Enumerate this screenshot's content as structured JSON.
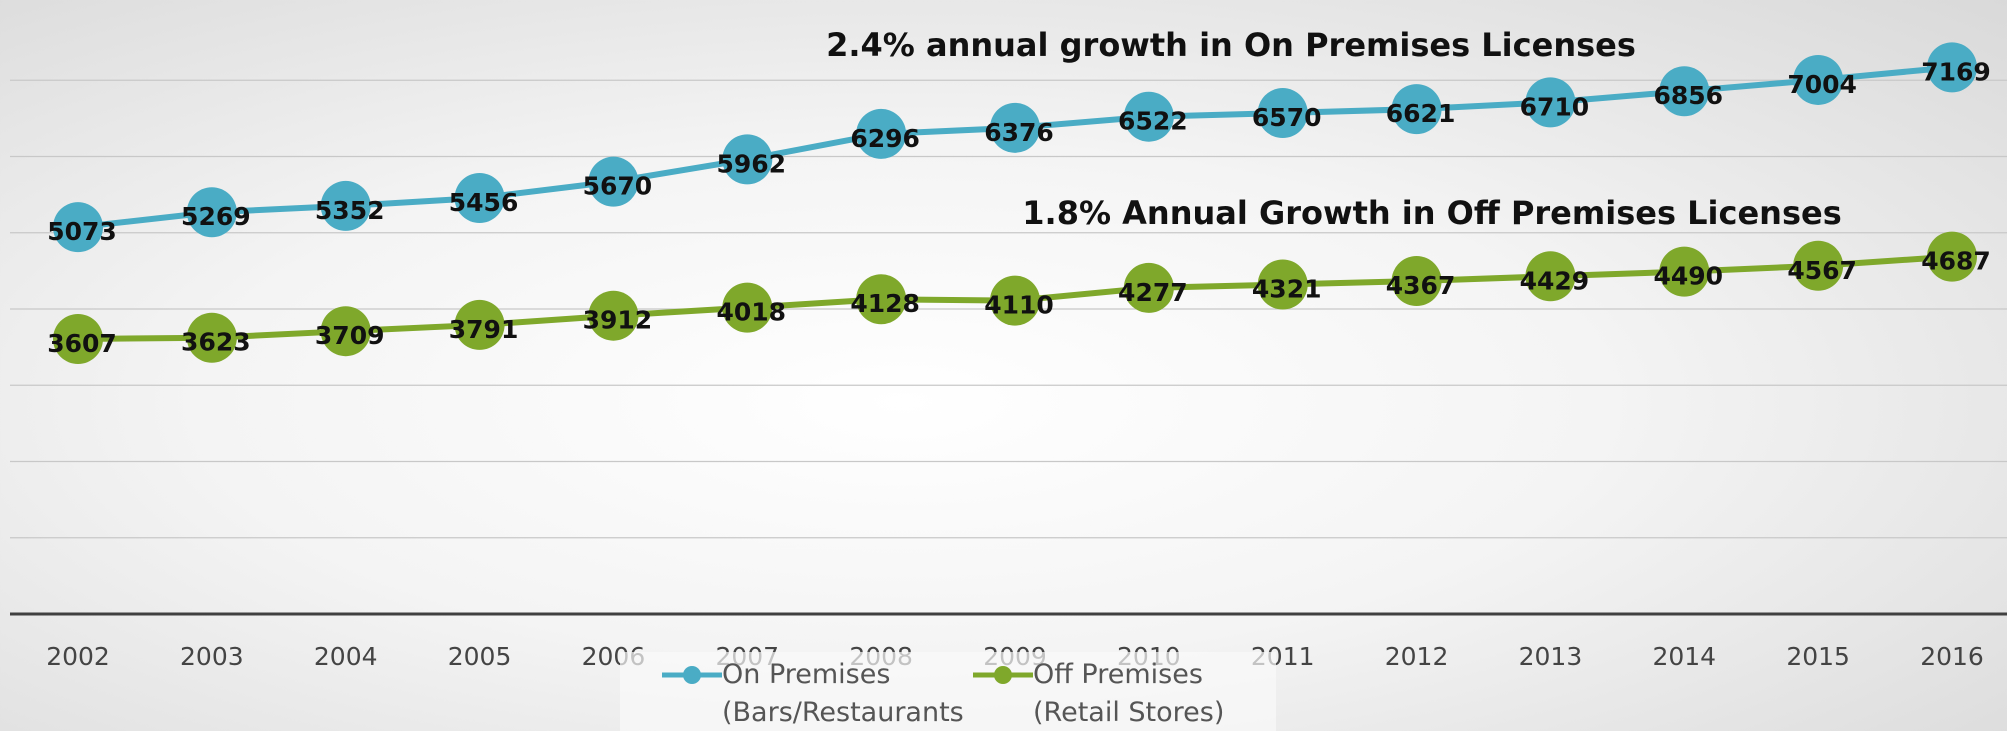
{
  "chart_data": {
    "type": "line",
    "annotations": [
      "2.4% annual growth in On Premises Licenses",
      "1.8% Annual Growth in Off Premises Licenses"
    ],
    "categories": [
      "2002",
      "2003",
      "2004",
      "2005",
      "2006",
      "2007",
      "2008",
      "2009",
      "2010",
      "2011",
      "2012",
      "2013",
      "2014",
      "2015",
      "2016"
    ],
    "series": [
      {
        "name": "On Premises (Bars/Restaurants",
        "color": "#4aacc5",
        "values": [
          5073,
          5269,
          5352,
          5456,
          5670,
          5962,
          6296,
          6376,
          6522,
          6570,
          6621,
          6710,
          6856,
          7004,
          7169
        ]
      },
      {
        "name": "Off Premises (Retail Stores)",
        "color": "#7fa82b",
        "values": [
          3607,
          3623,
          3709,
          3791,
          3912,
          4018,
          4128,
          4110,
          4277,
          4321,
          4367,
          4429,
          4490,
          4567,
          4687
        ]
      }
    ],
    "ylim": [
      0,
      8000
    ],
    "yticks": [
      0,
      1000,
      2000,
      3000,
      4000,
      5000,
      6000,
      7000
    ],
    "grid": true,
    "legend": "bottom"
  }
}
